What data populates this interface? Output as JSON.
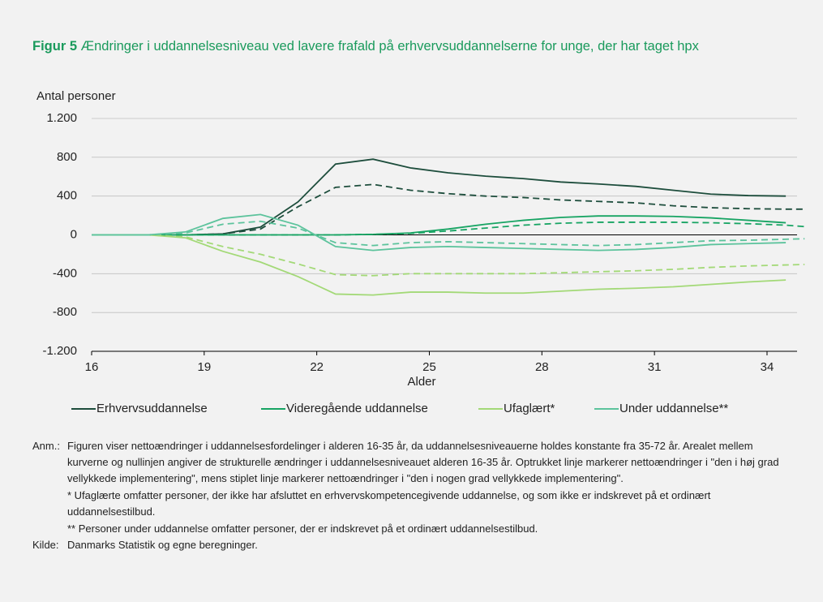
{
  "chart_data": {
    "type": "line",
    "title_prefix": "Figur 5",
    "title": "Ændringer i uddannelsesniveau ved lavere frafald på erhvervsuddannelserne for unge, der har taget hpx",
    "y_label": "Antal personer",
    "x_label": "Alder",
    "x": [
      16,
      16.5,
      17.5,
      18.5,
      19.5,
      20.5,
      21.5,
      22.5,
      23.5,
      24.5,
      25.5,
      26.5,
      27.5,
      28.5,
      29.5,
      30.5,
      31.5,
      32.5,
      33.5,
      34.5,
      35
    ],
    "xlim": [
      16,
      34.8
    ],
    "xticks": [
      16,
      19,
      22,
      25,
      28,
      31,
      34
    ],
    "ylim": [
      -1200,
      1200
    ],
    "yticks": [
      {
        "value": 1200,
        "label": "1.200"
      },
      800,
      400,
      0,
      -400,
      -800,
      {
        "value": -1200,
        "label": "-1.200"
      }
    ],
    "grid": true,
    "series": [
      {
        "name": "Erhvervsuddannelse",
        "color": "#1d4d3c",
        "values": [
          0,
          0,
          0,
          0,
          10,
          80,
          340,
          730,
          780,
          690,
          640,
          605,
          580,
          545,
          525,
          500,
          460,
          420,
          405,
          400,
          null
        ],
        "values_dashed": [
          0,
          0,
          0,
          0,
          10,
          60,
          290,
          490,
          520,
          460,
          425,
          400,
          385,
          360,
          345,
          330,
          300,
          280,
          270,
          265,
          265
        ]
      },
      {
        "name": "Videregående uddannelse",
        "color": "#17a463",
        "values": [
          0,
          0,
          0,
          0,
          0,
          0,
          0,
          0,
          5,
          20,
          60,
          110,
          150,
          180,
          195,
          195,
          190,
          175,
          150,
          125,
          null
        ],
        "values_dashed": [
          0,
          0,
          0,
          0,
          0,
          0,
          0,
          0,
          5,
          15,
          40,
          70,
          100,
          120,
          130,
          130,
          130,
          125,
          115,
          100,
          85
        ]
      },
      {
        "name": "Ufaglært*",
        "color": "#a3d977",
        "values": [
          0,
          0,
          0,
          -30,
          -170,
          -280,
          -430,
          -610,
          -620,
          -590,
          -590,
          -600,
          -600,
          -580,
          -560,
          -550,
          -535,
          -510,
          -485,
          -465,
          null
        ],
        "values_dashed": [
          0,
          0,
          0,
          -20,
          -120,
          -200,
          -300,
          -410,
          -420,
          -400,
          -400,
          -400,
          -400,
          -390,
          -380,
          -370,
          -355,
          -335,
          -320,
          -310,
          -305
        ]
      },
      {
        "name": "Under uddannelse**",
        "color": "#5cc39c",
        "values": [
          0,
          0,
          0,
          30,
          170,
          210,
          100,
          -120,
          -160,
          -130,
          -120,
          -130,
          -140,
          -150,
          -160,
          -150,
          -130,
          -100,
          -90,
          -80,
          null
        ],
        "values_dashed": [
          0,
          0,
          0,
          20,
          110,
          140,
          70,
          -80,
          -110,
          -80,
          -70,
          -80,
          -90,
          -100,
          -110,
          -100,
          -80,
          -60,
          -55,
          -45,
          -40
        ]
      }
    ]
  },
  "notes": {
    "label": "Anm.:",
    "paragraphs": [
      "Figuren viser nettoændringer i uddannelsesfordelinger i alderen 16-35 år, da uddannelsesniveauerne holdes konstante fra 35-72 år. Arealet mellem kurverne og nullinjen angiver de strukturelle ændringer i uddannelsesniveauet alderen 16-35 år. Optrukket linje markerer nettoændringer i \"den i høj grad vellykkede implementering\", mens stiplet linje markerer nettoændringer i \"den i nogen grad vellykkede implementering\".",
      "* Ufaglærte omfatter personer, der ikke har afsluttet en erhvervskompetencegivende uddannelse, og som ikke er indskrevet på et ordinært uddannelsestilbud.",
      "** Personer under uddannelse omfatter personer, der er indskrevet på et ordinært uddannelsestilbud."
    ]
  },
  "source": {
    "label": "Kilde:",
    "text": "Danmarks Statistik og egne beregninger."
  }
}
